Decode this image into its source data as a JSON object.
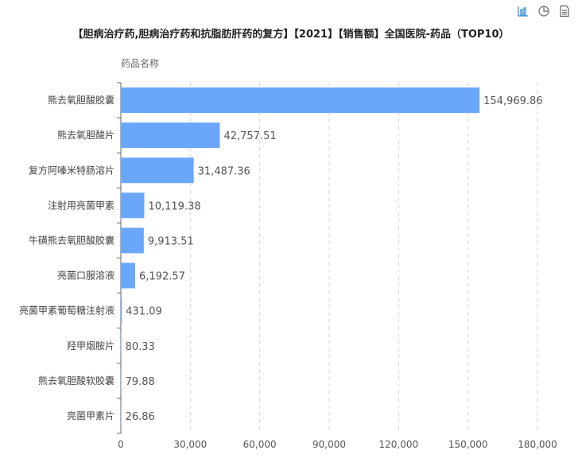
{
  "toolbar": {
    "icons": [
      "bar-chart-icon",
      "pie-chart-icon",
      "document-icon"
    ],
    "accent_color": "#3a8fd6"
  },
  "chart_data": {
    "type": "bar",
    "orientation": "horizontal",
    "title": "【胆病治疗药,胆病治疗药和抗脂肪肝药的复方】【2021】【销售额】全国医院-药品（TOP10）",
    "ylabel": "药品名称",
    "xlabel": "",
    "categories": [
      "熊去氧胆酸胶囊",
      "熊去氧胆酸片",
      "复方阿嗪米特肠溶片",
      "注射用亮菌甲素",
      "牛磺熊去氧胆酸胶囊",
      "亮菌口服溶液",
      "亮菌甲素葡萄糖注射液",
      "羟甲烟胺片",
      "熊去氧胆酸软胶囊",
      "亮菌甲素片"
    ],
    "values": [
      154969.86,
      42757.51,
      31487.36,
      10119.38,
      9913.51,
      6192.57,
      431.09,
      80.33,
      79.88,
      26.86
    ],
    "value_labels": [
      "154,969.86",
      "42,757.51",
      "31,487.36",
      "10,119.38",
      "9,913.51",
      "6,192.57",
      "431.09",
      "80.33",
      "79.88",
      "26.86"
    ],
    "xlim": [
      0,
      180000
    ],
    "xticks": [
      0,
      30000,
      60000,
      90000,
      120000,
      150000,
      180000
    ],
    "xtick_labels": [
      "0",
      "30,000",
      "60,000",
      "90,000",
      "120,000",
      "150,000",
      "180,000"
    ],
    "bar_color": "#6aa7fb",
    "grid": true
  }
}
